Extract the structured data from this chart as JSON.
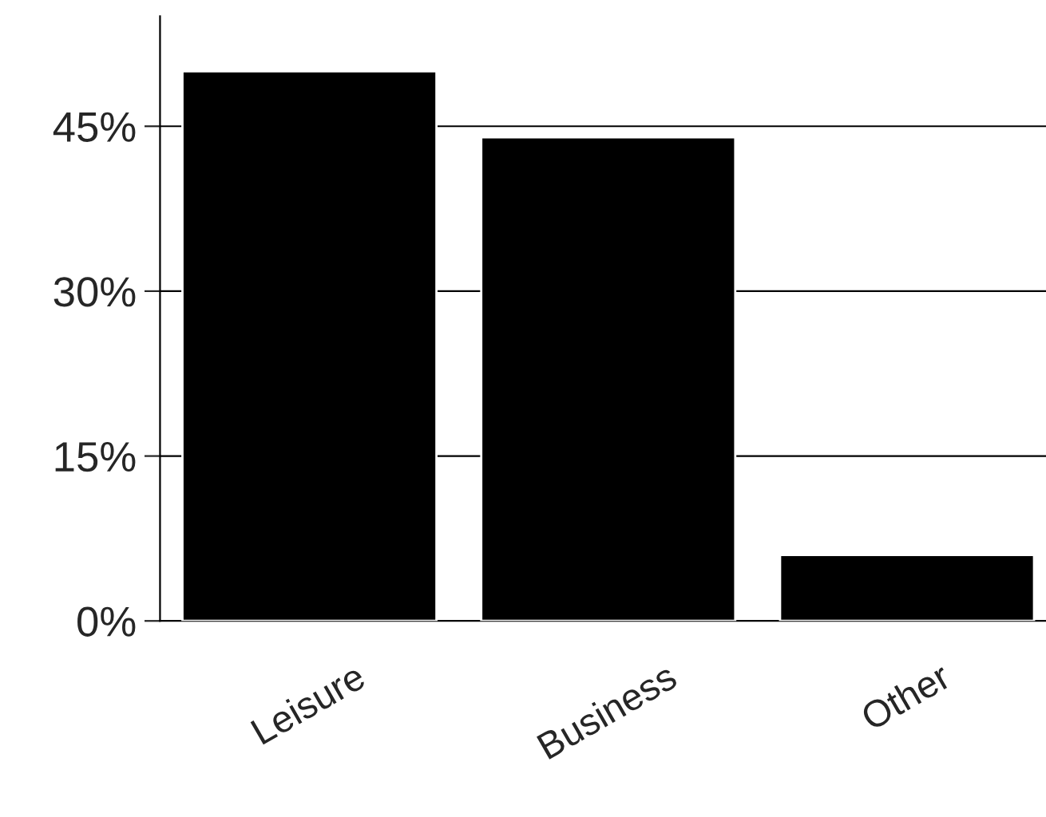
{
  "chart_data": {
    "type": "bar",
    "categories": [
      "Leisure",
      "Business",
      "Other"
    ],
    "values": [
      50,
      44,
      6
    ],
    "color": "#000000",
    "ylim": [
      0,
      55
    ],
    "yticks": [
      {
        "value": 0,
        "label": "0%"
      },
      {
        "value": 15,
        "label": "15%"
      },
      {
        "value": 30,
        "label": "30%"
      },
      {
        "value": 45,
        "label": "45%"
      }
    ],
    "grid": "y",
    "legend": false
  }
}
